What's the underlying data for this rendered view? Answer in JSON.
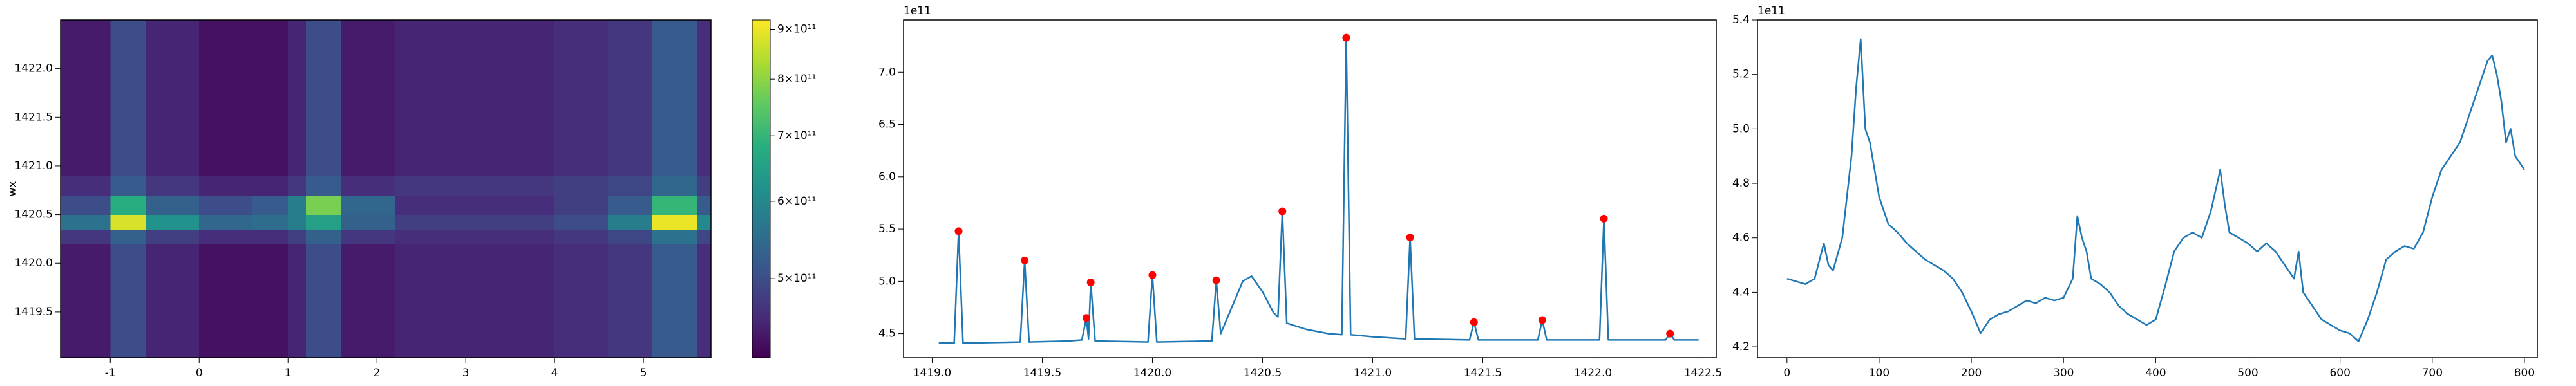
{
  "chart_data": [
    {
      "type": "heatmap",
      "ylabel": "wx",
      "colormap": "viridis",
      "xlim": [
        -1.56,
        5.76
      ],
      "ylim": [
        1419.03,
        1422.5
      ],
      "xticks": [
        -1,
        0,
        1,
        2,
        3,
        4,
        5
      ],
      "yticks": [
        1419.5,
        {
          "value": 1420,
          "label": "1420.0"
        },
        1420.5,
        {
          "value": 1421,
          "label": "1421.0"
        },
        1421.5,
        {
          "value": 1422,
          "label": "1422.0"
        }
      ],
      "x_edges": [
        -1.56,
        -1.0,
        -0.6,
        0,
        0.6,
        1.0,
        1.2,
        1.6,
        2.2,
        2.8,
        3.4,
        4.0,
        4.6,
        5.1,
        5.6,
        5.76
      ],
      "y_edges": [
        1419.03,
        1419.5,
        1419.9,
        1420.2,
        1420.35,
        1420.5,
        1420.7,
        1420.9,
        1421.2,
        1421.6,
        1422.0,
        1422.5
      ],
      "z": [
        [
          440000000000.0,
          500000000000.0,
          450000000000.0,
          430000000000.0,
          430000000000.0,
          450000000000.0,
          500000000000.0,
          440000000000.0,
          450000000000.0,
          450000000000.0,
          450000000000.0,
          460000000000.0,
          470000000000.0,
          520000000000.0,
          460000000000.0
        ],
        [
          440000000000.0,
          500000000000.0,
          450000000000.0,
          430000000000.0,
          430000000000.0,
          450000000000.0,
          500000000000.0,
          440000000000.0,
          450000000000.0,
          450000000000.0,
          450000000000.0,
          460000000000.0,
          470000000000.0,
          520000000000.0,
          460000000000.0
        ],
        [
          440000000000.0,
          500000000000.0,
          450000000000.0,
          430000000000.0,
          430000000000.0,
          450000000000.0,
          500000000000.0,
          440000000000.0,
          450000000000.0,
          450000000000.0,
          450000000000.0,
          460000000000.0,
          470000000000.0,
          520000000000.0,
          460000000000.0
        ],
        [
          470000000000.0,
          530000000000.0,
          480000000000.0,
          460000000000.0,
          460000000000.0,
          480000000000.0,
          530000000000.0,
          470000000000.0,
          460000000000.0,
          460000000000.0,
          460000000000.0,
          470000000000.0,
          490000000000.0,
          560000000000.0,
          490000000000.0
        ],
        [
          560000000000.0,
          880000000000.0,
          620000000000.0,
          540000000000.0,
          550000000000.0,
          580000000000.0,
          650000000000.0,
          530000000000.0,
          480000000000.0,
          480000000000.0,
          480000000000.0,
          500000000000.0,
          580000000000.0,
          900000000000.0,
          600000000000.0
        ],
        [
          500000000000.0,
          680000000000.0,
          530000000000.0,
          500000000000.0,
          520000000000.0,
          580000000000.0,
          780000000000.0,
          540000000000.0,
          460000000000.0,
          460000000000.0,
          460000000000.0,
          480000000000.0,
          520000000000.0,
          700000000000.0,
          520000000000.0
        ],
        [
          460000000000.0,
          520000000000.0,
          470000000000.0,
          450000000000.0,
          450000000000.0,
          470000000000.0,
          520000000000.0,
          460000000000.0,
          470000000000.0,
          470000000000.0,
          470000000000.0,
          480000000000.0,
          490000000000.0,
          540000000000.0,
          480000000000.0
        ],
        [
          440000000000.0,
          500000000000.0,
          450000000000.0,
          430000000000.0,
          430000000000.0,
          450000000000.0,
          500000000000.0,
          440000000000.0,
          450000000000.0,
          450000000000.0,
          450000000000.0,
          460000000000.0,
          470000000000.0,
          520000000000.0,
          460000000000.0
        ],
        [
          440000000000.0,
          500000000000.0,
          450000000000.0,
          430000000000.0,
          430000000000.0,
          450000000000.0,
          500000000000.0,
          440000000000.0,
          450000000000.0,
          450000000000.0,
          450000000000.0,
          460000000000.0,
          470000000000.0,
          520000000000.0,
          460000000000.0
        ],
        [
          440000000000.0,
          500000000000.0,
          450000000000.0,
          430000000000.0,
          430000000000.0,
          450000000000.0,
          500000000000.0,
          440000000000.0,
          450000000000.0,
          450000000000.0,
          450000000000.0,
          460000000000.0,
          470000000000.0,
          520000000000.0,
          460000000000.0
        ],
        [
          440000000000.0,
          500000000000.0,
          450000000000.0,
          430000000000.0,
          430000000000.0,
          450000000000.0,
          500000000000.0,
          440000000000.0,
          450000000000.0,
          450000000000.0,
          450000000000.0,
          460000000000.0,
          470000000000.0,
          520000000000.0,
          460000000000.0
        ]
      ],
      "colorbar": {
        "log": true,
        "clim": [
          415000000000.0,
          920000000000.0
        ],
        "ticks": [
          {
            "value": 500000000000.0,
            "label": "5×10¹¹"
          },
          {
            "value": 600000000000.0,
            "label": "6×10¹¹"
          },
          {
            "value": 700000000000.0,
            "label": "7×10¹¹"
          },
          {
            "value": 800000000000.0,
            "label": "8×10¹¹"
          },
          {
            "value": 900000000000.0,
            "label": "9×10¹¹"
          }
        ]
      }
    },
    {
      "type": "line",
      "offset_label": "1e11",
      "color": "#1f77b4",
      "xlim": [
        1418.87,
        1422.56
      ],
      "ylim": [
        4.27,
        7.5
      ],
      "xticks": [
        {
          "value": 1419,
          "label": "1419.0"
        },
        1419.5,
        {
          "value": 1420,
          "label": "1420.0"
        },
        1420.5,
        {
          "value": 1421,
          "label": "1421.0"
        },
        1421.5,
        {
          "value": 1422,
          "label": "1422.0"
        },
        1422.5
      ],
      "yticks": [
        4.5,
        {
          "value": 5,
          "label": "5.0"
        },
        5.5,
        {
          "value": 6,
          "label": "6.0"
        },
        6.5,
        {
          "value": 7,
          "label": "7.0"
        }
      ],
      "x": [
        1419.03,
        1419.1,
        1419.12,
        1419.14,
        1419.4,
        1419.42,
        1419.44,
        1419.62,
        1419.68,
        1419.7,
        1419.71,
        1419.72,
        1419.74,
        1419.98,
        1420.0,
        1420.02,
        1420.27,
        1420.29,
        1420.31,
        1420.36,
        1420.41,
        1420.45,
        1420.5,
        1420.55,
        1420.57,
        1420.59,
        1420.61,
        1420.7,
        1420.8,
        1420.86,
        1420.88,
        1420.9,
        1421.0,
        1421.15,
        1421.17,
        1421.19,
        1421.44,
        1421.46,
        1421.48,
        1421.75,
        1421.77,
        1421.79,
        1422.03,
        1422.05,
        1422.07,
        1422.33,
        1422.35,
        1422.37,
        1422.48
      ],
      "values": [
        4.41,
        4.41,
        5.48,
        4.41,
        4.42,
        5.2,
        4.42,
        4.43,
        4.44,
        4.65,
        4.45,
        4.99,
        4.43,
        4.42,
        5.06,
        4.42,
        4.43,
        5.01,
        4.5,
        4.75,
        5.0,
        5.05,
        4.9,
        4.7,
        4.66,
        5.67,
        4.6,
        4.54,
        4.5,
        4.49,
        7.33,
        4.49,
        4.47,
        4.45,
        5.42,
        4.45,
        4.44,
        4.61,
        4.44,
        4.44,
        4.63,
        4.44,
        4.44,
        5.6,
        4.44,
        4.44,
        4.5,
        4.44,
        4.44
      ],
      "peaks": {
        "color": "#ff0000",
        "x": [
          1419.12,
          1419.42,
          1419.7,
          1419.72,
          1420.0,
          1420.29,
          1420.59,
          1420.88,
          1421.17,
          1421.46,
          1421.77,
          1422.05,
          1422.35
        ],
        "values": [
          5.48,
          5.2,
          4.65,
          4.99,
          5.06,
          5.01,
          5.67,
          7.33,
          5.42,
          4.61,
          4.63,
          5.6,
          4.5
        ]
      }
    },
    {
      "type": "line",
      "offset_label": "1e11",
      "color": "#1f77b4",
      "xlim": [
        -32,
        814
      ],
      "ylim": [
        4.16,
        5.4
      ],
      "xticks": [
        0,
        100,
        200,
        300,
        400,
        500,
        600,
        700,
        800
      ],
      "yticks": [
        4.2,
        4.4,
        4.6,
        4.8,
        {
          "value": 5,
          "label": "5.0"
        },
        5.2,
        5.4
      ],
      "x": [
        0,
        10,
        20,
        30,
        40,
        45,
        50,
        60,
        70,
        75,
        80,
        85,
        90,
        100,
        110,
        120,
        130,
        140,
        150,
        160,
        170,
        180,
        190,
        200,
        210,
        220,
        230,
        240,
        250,
        260,
        270,
        280,
        290,
        300,
        310,
        315,
        320,
        325,
        330,
        340,
        350,
        360,
        370,
        380,
        390,
        400,
        410,
        420,
        430,
        440,
        450,
        460,
        470,
        475,
        480,
        490,
        500,
        510,
        520,
        530,
        540,
        550,
        555,
        560,
        570,
        580,
        590,
        600,
        610,
        620,
        630,
        640,
        650,
        660,
        670,
        680,
        690,
        700,
        710,
        720,
        730,
        740,
        750,
        760,
        765,
        770,
        775,
        780,
        785,
        790,
        800
      ],
      "values": [
        4.45,
        4.44,
        4.43,
        4.45,
        4.58,
        4.5,
        4.48,
        4.6,
        4.9,
        5.15,
        5.33,
        5.0,
        4.95,
        4.75,
        4.65,
        4.62,
        4.58,
        4.55,
        4.52,
        4.5,
        4.48,
        4.45,
        4.4,
        4.33,
        4.25,
        4.3,
        4.32,
        4.33,
        4.35,
        4.37,
        4.36,
        4.38,
        4.37,
        4.38,
        4.45,
        4.68,
        4.6,
        4.55,
        4.45,
        4.43,
        4.4,
        4.35,
        4.32,
        4.3,
        4.28,
        4.3,
        4.42,
        4.55,
        4.6,
        4.62,
        4.6,
        4.7,
        4.85,
        4.72,
        4.62,
        4.6,
        4.58,
        4.55,
        4.58,
        4.55,
        4.5,
        4.45,
        4.55,
        4.4,
        4.35,
        4.3,
        4.28,
        4.26,
        4.25,
        4.22,
        4.3,
        4.4,
        4.52,
        4.55,
        4.57,
        4.56,
        4.62,
        4.75,
        4.85,
        4.9,
        4.95,
        5.05,
        5.15,
        5.25,
        5.27,
        5.2,
        5.1,
        4.95,
        5.0,
        4.9,
        4.85
      ]
    }
  ]
}
